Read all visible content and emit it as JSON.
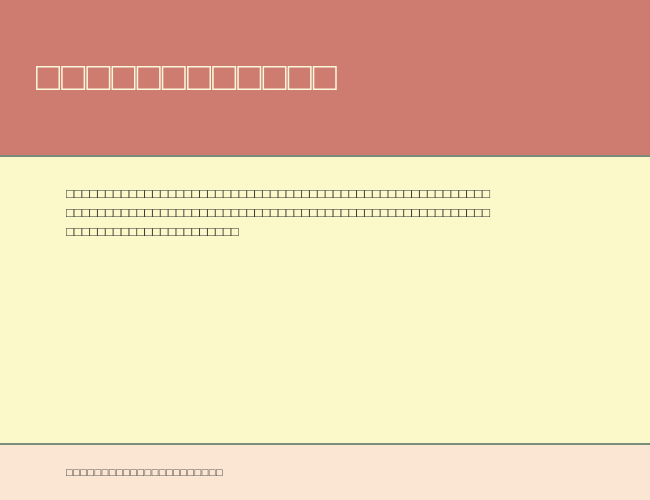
{
  "colors": {
    "header_bg": "#ce7c70",
    "header_text": "#faf8db",
    "body_bg": "#fbf9c9",
    "body_text": "#2b2b2b",
    "footer_bg": "#fbe6d3",
    "footer_text": "#2b2b2b",
    "divider": "#7a8c7a"
  },
  "header": {
    "title": "□□□□□□□□□□□□"
  },
  "body": {
    "paragraph": "□□□□□□□□□□□□□□□□□□□□□□□□□□□□□□□□□□□□□□□□□□□□□□□□□□□□□□□□□□□□□□□□□□□□□□□□□□□□□□□□□□□□□□□□□□□□□□□□□□□□□□□□□□□□□□□□□□□□□□□□□□□□□□□□□□"
  },
  "footer": {
    "text": "□□□□□□□□□□□□□□□□□□□□□□"
  }
}
